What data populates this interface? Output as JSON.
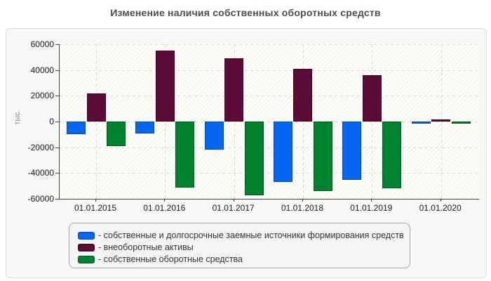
{
  "title": "Изменение наличия собственных оборотных средств",
  "y_axis": {
    "label": "тыс.",
    "ticks": [
      "60000",
      "40000",
      "20000",
      "0",
      "-20000",
      "-40000",
      "-60000"
    ]
  },
  "chart_data": {
    "type": "bar",
    "title": "Изменение наличия собственных оборотных средств",
    "xlabel": "",
    "ylabel": "тыс.",
    "ylim": [
      -60000,
      60000
    ],
    "grid": true,
    "legend_position": "bottom",
    "categories": [
      "01.01.2015",
      "01.01.2016",
      "01.01.2017",
      "01.01.2018",
      "01.01.2019",
      "01.01.2020"
    ],
    "series": [
      {
        "name": "собственные и долгосрочные заемные источники формирования средств",
        "color": "#0566f2",
        "border": "#0349b5",
        "values": [
          -10000,
          -9000,
          -22000,
          -47000,
          -45000,
          -1500
        ]
      },
      {
        "name": "внеоборотные активы",
        "color": "#5c0a36",
        "border": "#3d051f",
        "values": [
          22000,
          55000,
          49000,
          41000,
          36000,
          1500
        ]
      },
      {
        "name": "собственные оборотные средства",
        "color": "#00832e",
        "border": "#005c1e",
        "values": [
          -19000,
          -51000,
          -57000,
          -54000,
          -52000,
          -1500
        ]
      }
    ]
  },
  "legend": {
    "items": [
      {
        "label": "- собственные и долгосрочные заемные источники формирования средств",
        "color": "#0566f2",
        "border": "#0349b5"
      },
      {
        "label": "- внеоборотные активы",
        "color": "#5c0a36",
        "border": "#3d051f"
      },
      {
        "label": "- собственные оборотные средства",
        "color": "#00832e",
        "border": "#005c1e"
      }
    ]
  },
  "colors": {
    "panel_bg": "#f7f7f7",
    "panel_border": "#dcdcdc",
    "axis": "#444444",
    "gridline": "#d6d6d6",
    "title_text": "#4d4d4d"
  }
}
